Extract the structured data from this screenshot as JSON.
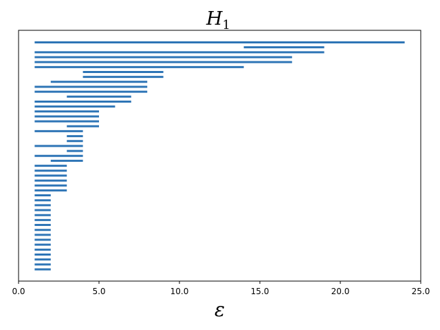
{
  "chart_data": {
    "type": "barcode",
    "title": "H",
    "title_subscript": "1",
    "xlabel": "ε",
    "ylabel": "",
    "xlim": [
      0,
      25
    ],
    "xticks": [
      "0.0",
      "5.0",
      "10.0",
      "15.0",
      "20.0",
      "25.0"
    ],
    "xtick_values": [
      0,
      5,
      10,
      15,
      20,
      25
    ],
    "yticks_visible": false,
    "grid": false,
    "color": "#2e75b6",
    "bars": [
      [
        1,
        24
      ],
      [
        14,
        19
      ],
      [
        1,
        19
      ],
      [
        1,
        17
      ],
      [
        1,
        17
      ],
      [
        1,
        14
      ],
      [
        4,
        9
      ],
      [
        4,
        9
      ],
      [
        2,
        8
      ],
      [
        1,
        8
      ],
      [
        1,
        8
      ],
      [
        3,
        7
      ],
      [
        1,
        7
      ],
      [
        1,
        6
      ],
      [
        1,
        5
      ],
      [
        1,
        5
      ],
      [
        1,
        5
      ],
      [
        3,
        5
      ],
      [
        1,
        4
      ],
      [
        3,
        4
      ],
      [
        3,
        4
      ],
      [
        1,
        4
      ],
      [
        3,
        4
      ],
      [
        1,
        4
      ],
      [
        2,
        4
      ],
      [
        1,
        3
      ],
      [
        1,
        3
      ],
      [
        1,
        3
      ],
      [
        1,
        3
      ],
      [
        1,
        3
      ],
      [
        1,
        3
      ],
      [
        1,
        2
      ],
      [
        1,
        2
      ],
      [
        1,
        2
      ],
      [
        1,
        2
      ],
      [
        1,
        2
      ],
      [
        1,
        2
      ],
      [
        1,
        2
      ],
      [
        1,
        2
      ],
      [
        1,
        2
      ],
      [
        1,
        2
      ],
      [
        1,
        2
      ],
      [
        1,
        2
      ],
      [
        1,
        2
      ],
      [
        1,
        2
      ],
      [
        1,
        2
      ],
      [
        1,
        2
      ]
    ]
  }
}
